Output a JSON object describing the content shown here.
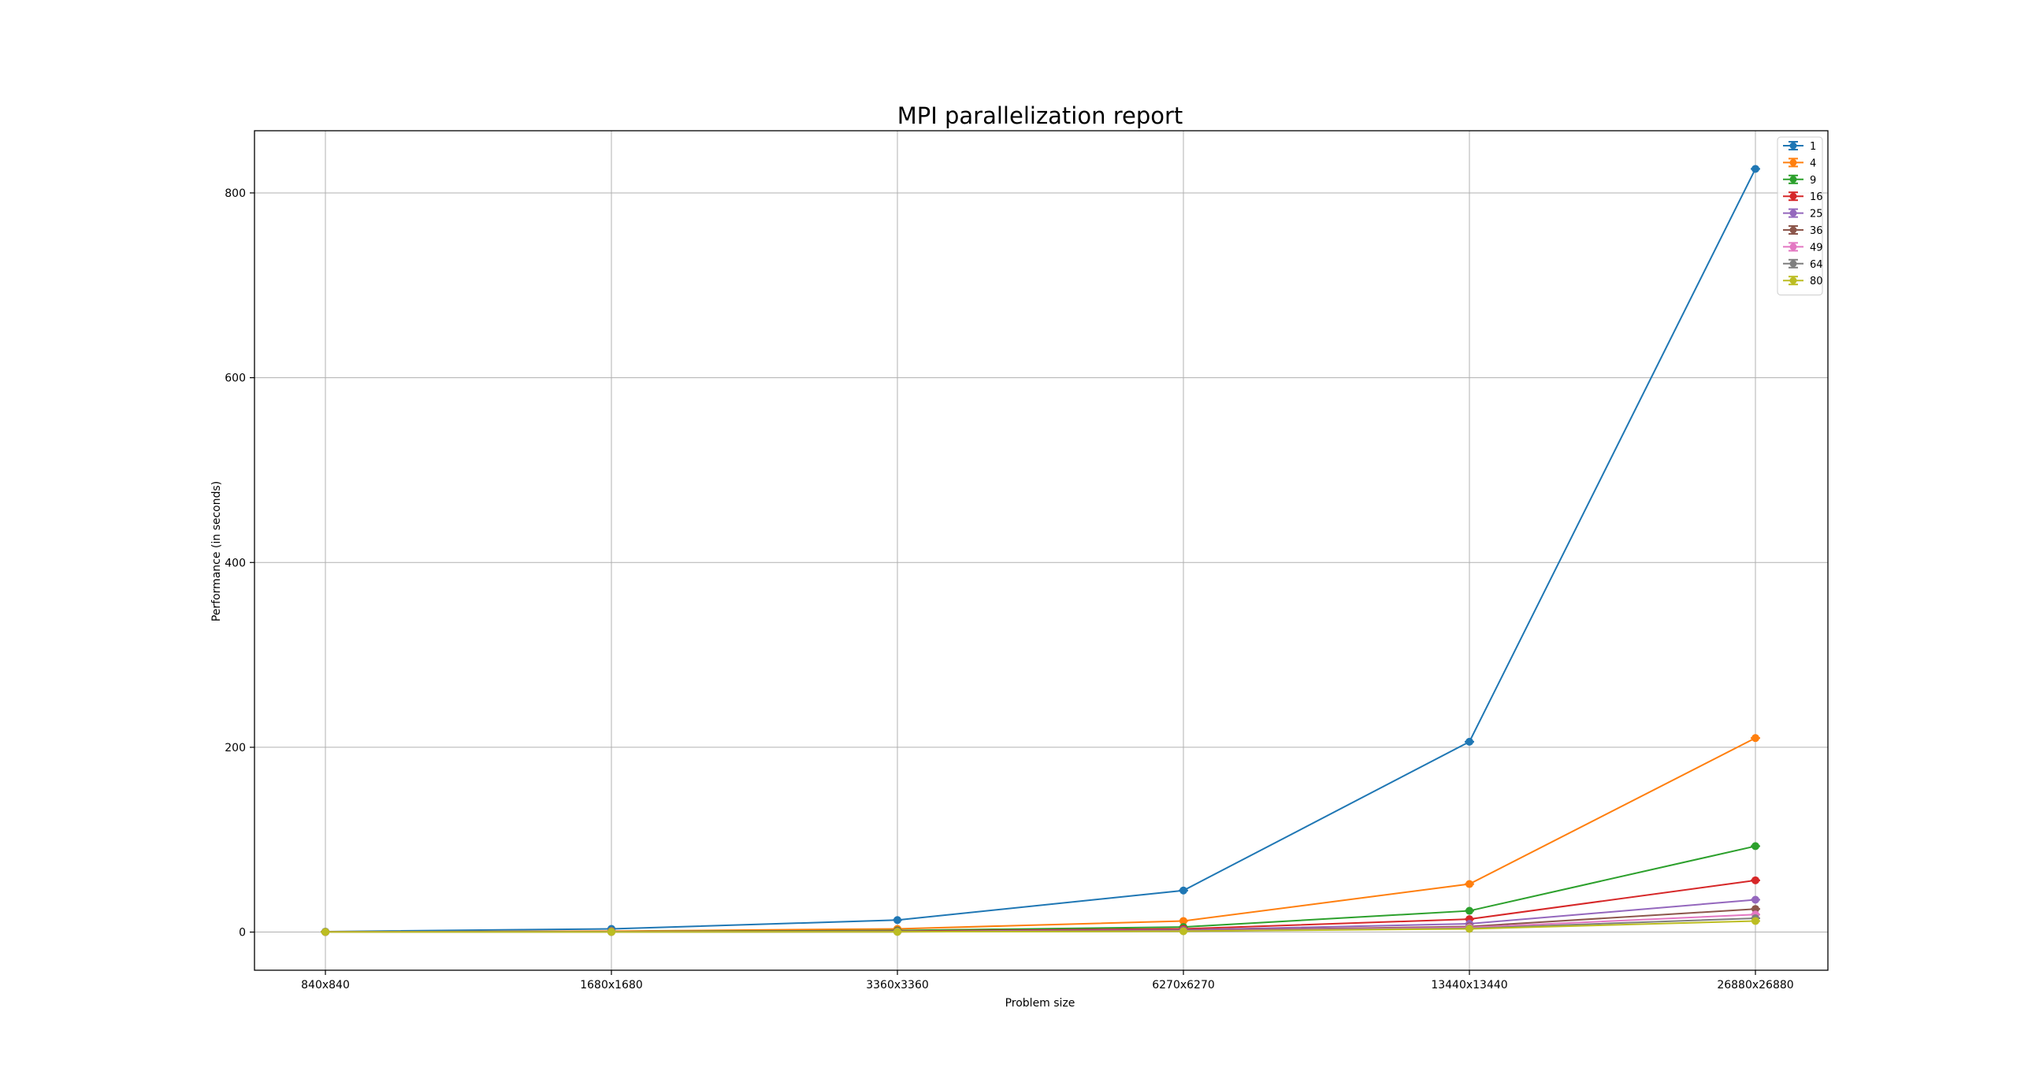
{
  "chart_data": {
    "type": "line",
    "title": "MPI parallelization report",
    "xlabel": "Problem size",
    "ylabel": "Performance (in seconds)",
    "categories": [
      "840x840",
      "1680x1680",
      "3360x3360",
      "6270x6270",
      "13440x13440",
      "26880x26880"
    ],
    "yticks": [
      0,
      200,
      400,
      600,
      800
    ],
    "ylim": [
      -41.3,
      867.3
    ],
    "grid": true,
    "legend_position": "top-right",
    "series": [
      {
        "name": "1",
        "color": "#1f77b4",
        "values": [
          0.5,
          3.5,
          13,
          45,
          206,
          826
        ]
      },
      {
        "name": "4",
        "color": "#ff7f0e",
        "values": [
          0.2,
          1.0,
          3.5,
          12,
          52,
          210
        ]
      },
      {
        "name": "9",
        "color": "#2ca02c",
        "values": [
          0.1,
          0.5,
          1.7,
          5.5,
          23,
          93
        ]
      },
      {
        "name": "16",
        "color": "#d62728",
        "values": [
          0.1,
          0.3,
          1.0,
          3.5,
          14,
          56
        ]
      },
      {
        "name": "25",
        "color": "#9467bd",
        "values": [
          0.1,
          0.2,
          0.7,
          2.3,
          9,
          35
        ]
      },
      {
        "name": "36",
        "color": "#8c564b",
        "values": [
          0.1,
          0.2,
          0.5,
          1.6,
          6,
          25
        ]
      },
      {
        "name": "49",
        "color": "#e377c2",
        "values": [
          0.1,
          0.2,
          0.4,
          1.2,
          5,
          19
        ]
      },
      {
        "name": "64",
        "color": "#7f7f7f",
        "values": [
          0.1,
          0.1,
          0.3,
          1.0,
          4,
          15
        ]
      },
      {
        "name": "80",
        "color": "#bcbd22",
        "values": [
          0.1,
          0.1,
          0.3,
          0.9,
          3.5,
          12
        ]
      }
    ]
  }
}
